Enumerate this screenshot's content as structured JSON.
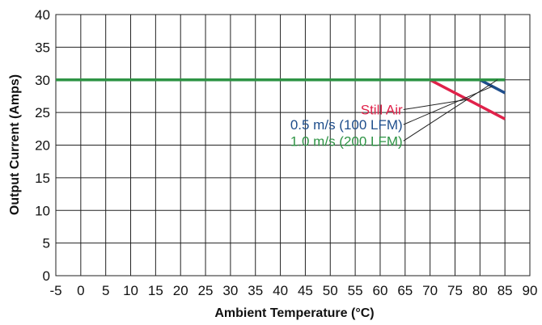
{
  "chart_data": {
    "type": "line",
    "xlabel": "Ambient Temperature (°C)",
    "ylabel": "Output Current (Amps)",
    "xlim": [
      -5,
      90
    ],
    "ylim": [
      0,
      40
    ],
    "xticks": [
      "-5",
      "0",
      "5",
      "10",
      "15",
      "20",
      "25",
      "30",
      "35",
      "40",
      "45",
      "50",
      "55",
      "60",
      "65",
      "70",
      "75",
      "80",
      "85",
      "90"
    ],
    "yticks": [
      "0",
      "5",
      "10",
      "15",
      "20",
      "25",
      "30",
      "35",
      "40"
    ],
    "grid": true,
    "series": [
      {
        "name": "Still Air",
        "color": "#e0224a",
        "x": [
          -5,
          70,
          85
        ],
        "y": [
          30,
          30,
          24
        ]
      },
      {
        "name": "0.5 m/s (100 LFM)",
        "color": "#1f4e8c",
        "x": [
          -5,
          80,
          85
        ],
        "y": [
          30,
          30,
          28
        ]
      },
      {
        "name": "1.0 m/s (200 LFM)",
        "color": "#2e9445",
        "x": [
          -5,
          85
        ],
        "y": [
          30,
          30
        ]
      }
    ],
    "annotations": [
      {
        "text": "Still Air",
        "series": 0,
        "label_at": [
          64.5,
          24.7
        ],
        "point_to": [
          77.5,
          27
        ]
      },
      {
        "text": "0.5 m/s (100 LFM)",
        "series": 1,
        "label_at": [
          64.5,
          22.4
        ],
        "point_to": [
          82.5,
          29
        ]
      },
      {
        "text": "1.0 m/s (200 LFM)",
        "series": 2,
        "label_at": [
          64.5,
          19.9
        ],
        "point_to": [
          83.5,
          30
        ]
      }
    ]
  }
}
